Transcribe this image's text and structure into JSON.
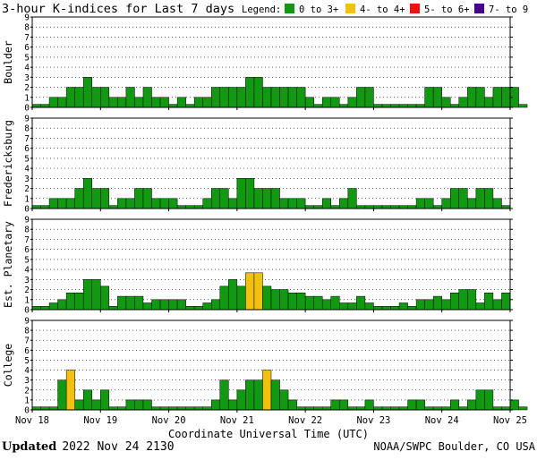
{
  "title": "3-hour K-indices for Last 7 days",
  "legend": {
    "label": "Legend:",
    "items": [
      {
        "label": "0 to 3+",
        "color": "#119911"
      },
      {
        "label": "4- to 4+",
        "color": "#f2c10f"
      },
      {
        "label": "5- to 6+",
        "color": "#ee1111"
      },
      {
        "label": "7- to 9",
        "color": "#440088"
      }
    ]
  },
  "footer": {
    "updated_label": "Updated",
    "updated_value": "2022 Nov 24 2130",
    "source": "NOAA/SWPC Boulder, CO USA"
  },
  "chart_data": {
    "type": "bar",
    "xlabel": "Coordinate Universal Time (UTC)",
    "x_ticks": [
      "Nov 18",
      "Nov 19",
      "Nov 20",
      "Nov 21",
      "Nov 22",
      "Nov 23",
      "Nov 24",
      "Nov 25"
    ],
    "ylim": [
      0,
      9
    ],
    "y_ticks": [
      0,
      1,
      2,
      3,
      4,
      5,
      6,
      7,
      8,
      9
    ],
    "bins_per_day": 8,
    "colors": {
      "quiet": "#119911",
      "active": "#f2c10f",
      "storm": "#ee1111",
      "severe": "#440088",
      "axis": "#000000"
    },
    "panels": [
      {
        "name": "Boulder",
        "values": [
          0.3,
          0.3,
          1,
          1,
          2,
          2,
          3,
          2,
          2,
          1,
          1,
          2,
          1,
          2,
          1,
          1,
          0.3,
          1,
          0.3,
          1,
          1,
          2,
          2,
          2,
          2,
          3,
          3,
          2,
          2,
          2,
          2,
          2,
          1,
          0.3,
          1,
          1,
          0.3,
          1,
          2,
          2,
          0.3,
          0.3,
          0.3,
          0.3,
          0.3,
          0.3,
          2,
          2,
          1,
          0.3,
          1,
          2,
          2,
          1,
          2,
          2,
          2,
          0.3
        ]
      },
      {
        "name": "Fredericksburg",
        "values": [
          0.3,
          0.3,
          1,
          1,
          1,
          2,
          3,
          2,
          2,
          0.3,
          1,
          1,
          2,
          2,
          1,
          1,
          1,
          0.3,
          0.3,
          0.3,
          1,
          2,
          2,
          1,
          3,
          3,
          2,
          2,
          2,
          1,
          1,
          1,
          0.3,
          0.3,
          1,
          0.3,
          1,
          2,
          0.3,
          0.3,
          0.3,
          0.3,
          0.3,
          0.3,
          0.3,
          1,
          1,
          0.3,
          1,
          2,
          2,
          1,
          2,
          2,
          1,
          0.3
        ]
      },
      {
        "name": "Est. Planetary",
        "values": [
          0.33,
          0.33,
          0.67,
          1,
          1.67,
          1.67,
          3,
          3,
          2.33,
          0.33,
          1.33,
          1.33,
          1.33,
          0.67,
          1,
          1,
          1,
          1,
          0.33,
          0.33,
          0.67,
          1,
          2.33,
          3,
          2.33,
          3.67,
          3.67,
          2.33,
          2,
          2,
          1.67,
          1.67,
          1.33,
          1.33,
          1,
          1.33,
          0.67,
          0.67,
          1.33,
          0.67,
          0.33,
          0.33,
          0.33,
          0.67,
          0.33,
          1,
          1,
          1.33,
          1,
          1.67,
          2,
          2,
          0.67,
          1.67,
          1,
          1.67
        ]
      },
      {
        "name": "College",
        "values": [
          0.3,
          0.3,
          0.3,
          3,
          4,
          1,
          2,
          1,
          2,
          0.3,
          0.3,
          1,
          1,
          1,
          0.3,
          0.3,
          0.3,
          0.3,
          0.3,
          0.3,
          0.3,
          1,
          3,
          1,
          2,
          3,
          3,
          4,
          3,
          2,
          1,
          0.3,
          0.3,
          0.3,
          0.3,
          1,
          1,
          0.3,
          0.3,
          1,
          0.3,
          0.3,
          0.3,
          0.3,
          1,
          1,
          0.3,
          0.3,
          0.3,
          1,
          0.3,
          1,
          2,
          2,
          0.3,
          0.3,
          1,
          0.3
        ]
      }
    ]
  }
}
